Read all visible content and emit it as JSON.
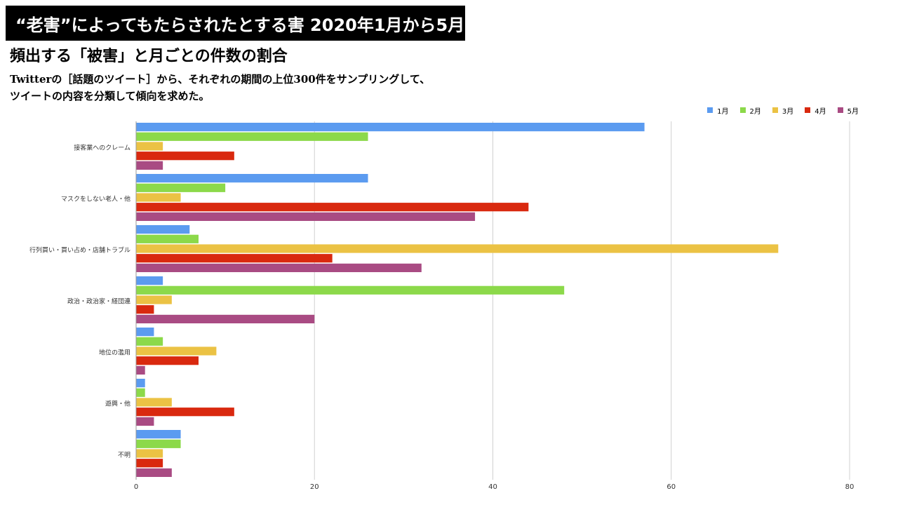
{
  "header": {
    "title": "“老害”によってもたらされたとする害 2020年1月から5月",
    "subtitle": "頻出する「被害」と月ごとの件数の割合",
    "description_lines": [
      "Twitterの［話題のツイート］から、それぞれの期間の上位300件をサンプリングして、",
      "ツイートの内容を分類して傾向を求めた。"
    ]
  },
  "chart_data": {
    "type": "bar",
    "orientation": "horizontal",
    "categories": [
      "接客業へのクレーム",
      "マスクをしない老人・他",
      "行列買い・買い占め・店舗トラブル",
      "政治・政治家・経団連",
      "地位の濫用",
      "遊興・他",
      "不明"
    ],
    "series": [
      {
        "name": "1月",
        "color": "#5b9bf0",
        "values": [
          57,
          26,
          6,
          3,
          2,
          1,
          5
        ]
      },
      {
        "name": "2月",
        "color": "#8cd94a",
        "values": [
          26,
          10,
          7,
          48,
          3,
          1,
          5
        ]
      },
      {
        "name": "3月",
        "color": "#ebc244",
        "values": [
          3,
          5,
          72,
          4,
          9,
          4,
          3
        ]
      },
      {
        "name": "4月",
        "color": "#d9290f",
        "values": [
          11,
          44,
          22,
          2,
          7,
          11,
          3
        ]
      },
      {
        "name": "5月",
        "color": "#a94b83",
        "values": [
          3,
          38,
          32,
          20,
          1,
          2,
          4
        ]
      }
    ],
    "xlim": [
      0,
      80
    ],
    "xticks": [
      "0",
      "20",
      "40",
      "60",
      "80"
    ],
    "grid": true,
    "legend": "top-right"
  }
}
